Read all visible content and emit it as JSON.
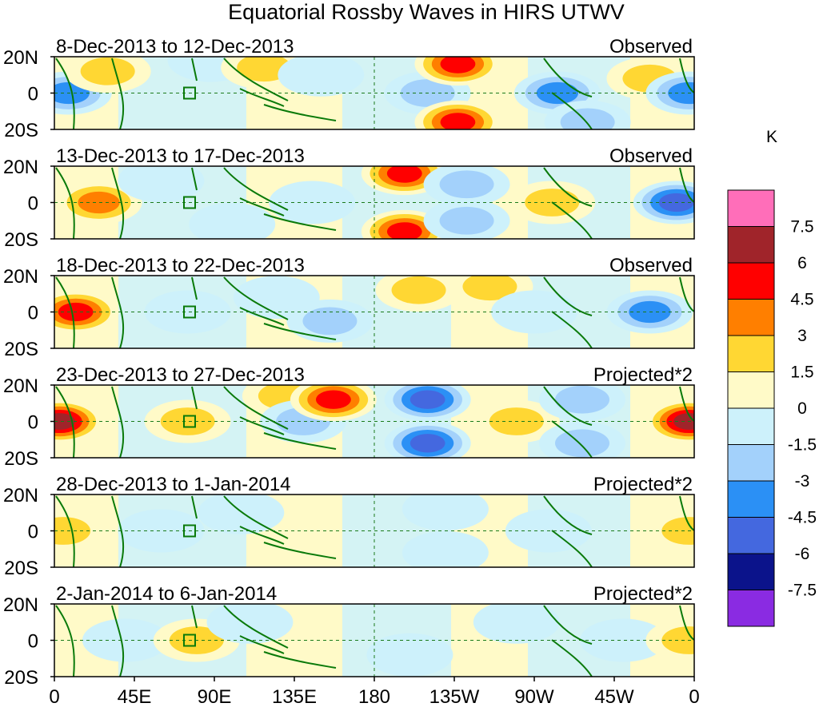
{
  "chart_data": {
    "type": "heatmap",
    "title": "Equatorial Rossby Waves in HIRS UTWV",
    "units": "K",
    "y_ticks": [
      "20N",
      "0",
      "20S"
    ],
    "x_ticks": [
      "0",
      "45E",
      "90E",
      "135E",
      "180",
      "135W",
      "90W",
      "45W",
      "0"
    ],
    "colorbar": {
      "ticks": [
        "7.5",
        "6",
        "4.5",
        "3",
        "1.5",
        "0",
        "-1.5",
        "-3",
        "-4.5",
        "-6",
        "-7.5"
      ],
      "colors": [
        "#ff6eb9",
        "#a0242a",
        "#ff0000",
        "#ff7f00",
        "#ffd733",
        "#fffac8",
        "#cdf1fb",
        "#a3d1fb",
        "#2b90f5",
        "#4468df",
        "#0b138b",
        "#8a2be2"
      ]
    },
    "panels": [
      {
        "period": "8-Dec-2013 to 12-Dec-2013",
        "label": "Observed",
        "anomalies": [
          {
            "lon": 8,
            "lat": 0,
            "value": -4.5
          },
          {
            "lon": 30,
            "lat": 12,
            "value": 1.5
          },
          {
            "lon": 88,
            "lat": 18,
            "value": -1.5
          },
          {
            "lon": 118,
            "lat": 14,
            "value": 1.5
          },
          {
            "lon": 150,
            "lat": 10,
            "value": -1.5
          },
          {
            "lon": 210,
            "lat": 0,
            "value": -3
          },
          {
            "lon": 227,
            "lat": 16,
            "value": 4.5
          },
          {
            "lon": 227,
            "lat": -16,
            "value": 4.5
          },
          {
            "lon": 283,
            "lat": 0,
            "value": -4.5
          },
          {
            "lon": 300,
            "lat": -16,
            "value": -3
          },
          {
            "lon": 335,
            "lat": 8,
            "value": 1.5
          },
          {
            "lon": 357,
            "lat": 0,
            "value": -4.5
          }
        ]
      },
      {
        "period": "13-Dec-2013 to 17-Dec-2013",
        "label": "Observed",
        "anomalies": [
          {
            "lon": 25,
            "lat": 0,
            "value": 3
          },
          {
            "lon": 60,
            "lat": 12,
            "value": -1.5
          },
          {
            "lon": 100,
            "lat": -12,
            "value": -1.5
          },
          {
            "lon": 145,
            "lat": 0,
            "value": -1.5
          },
          {
            "lon": 197,
            "lat": 16,
            "value": 4.5
          },
          {
            "lon": 197,
            "lat": -16,
            "value": 4.5
          },
          {
            "lon": 232,
            "lat": 10,
            "value": -3
          },
          {
            "lon": 232,
            "lat": -10,
            "value": -3
          },
          {
            "lon": 280,
            "lat": 0,
            "value": 1.5
          },
          {
            "lon": 350,
            "lat": 0,
            "value": -6
          }
        ]
      },
      {
        "period": "18-Dec-2013 to 22-Dec-2013",
        "label": "Observed",
        "anomalies": [
          {
            "lon": 12,
            "lat": 0,
            "value": 4.5
          },
          {
            "lon": 75,
            "lat": 0,
            "value": -1.5
          },
          {
            "lon": 125,
            "lat": 8,
            "value": -1.5
          },
          {
            "lon": 155,
            "lat": -5,
            "value": -3
          },
          {
            "lon": 205,
            "lat": 12,
            "value": 1.5
          },
          {
            "lon": 245,
            "lat": 14,
            "value": 1.5
          },
          {
            "lon": 270,
            "lat": 0,
            "value": -1.5
          },
          {
            "lon": 335,
            "lat": 0,
            "value": -4.5
          }
        ]
      },
      {
        "period": "23-Dec-2013 to 27-Dec-2013",
        "label": "Projected*2",
        "anomalies": [
          {
            "lon": 3,
            "lat": 0,
            "value": 6
          },
          {
            "lon": 75,
            "lat": 0,
            "value": 1.5
          },
          {
            "lon": 130,
            "lat": 14,
            "value": 1.5
          },
          {
            "lon": 140,
            "lat": 0,
            "value": -3
          },
          {
            "lon": 157,
            "lat": 12,
            "value": 4.5
          },
          {
            "lon": 210,
            "lat": 12,
            "value": -6
          },
          {
            "lon": 210,
            "lat": -12,
            "value": -6
          },
          {
            "lon": 260,
            "lat": 0,
            "value": 1.5
          },
          {
            "lon": 297,
            "lat": 12,
            "value": -3
          },
          {
            "lon": 297,
            "lat": -12,
            "value": -3
          },
          {
            "lon": 357,
            "lat": 0,
            "value": 6
          }
        ]
      },
      {
        "period": "28-Dec-2013 to 1-Jan-2014",
        "label": "Projected*2",
        "anomalies": [
          {
            "lon": 5,
            "lat": 0,
            "value": 1.5
          },
          {
            "lon": 60,
            "lat": 0,
            "value": -1.5
          },
          {
            "lon": 105,
            "lat": 10,
            "value": -1.5
          },
          {
            "lon": 220,
            "lat": 12,
            "value": -1.5
          },
          {
            "lon": 220,
            "lat": -12,
            "value": -1.5
          },
          {
            "lon": 278,
            "lat": 0,
            "value": -1.5
          },
          {
            "lon": 357,
            "lat": 0,
            "value": 1.5
          }
        ]
      },
      {
        "period": "2-Jan-2014 to 6-Jan-2014",
        "label": "Projected*2",
        "anomalies": [
          {
            "lon": 40,
            "lat": 0,
            "value": -1.5
          },
          {
            "lon": 80,
            "lat": 0,
            "value": 1.5
          },
          {
            "lon": 110,
            "lat": 10,
            "value": -1.5
          },
          {
            "lon": 200,
            "lat": -8,
            "value": -1.5
          },
          {
            "lon": 260,
            "lat": 10,
            "value": -1.5
          },
          {
            "lon": 320,
            "lat": 0,
            "value": -1.5
          },
          {
            "lon": 357,
            "lat": 0,
            "value": 1.5
          }
        ]
      }
    ]
  }
}
